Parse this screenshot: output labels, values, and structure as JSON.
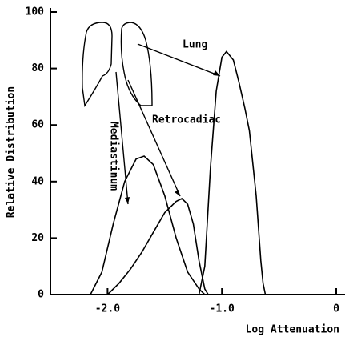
{
  "chart_data": {
    "type": "line",
    "x_label": "Log Attenuation",
    "y_label": "Relative Distribution",
    "xlim": [
      -2.5,
      0
    ],
    "ylim": [
      0,
      100
    ],
    "xticks": [
      {
        "value": -2,
        "label": "-2.0"
      },
      {
        "value": -1,
        "label": "-1.0"
      },
      0
    ],
    "yticks": [
      0,
      20,
      40,
      60,
      80,
      100
    ],
    "annotations": [
      "Lung",
      "Retrocadiac",
      "Mediastinum"
    ],
    "series": [
      {
        "color": "#000000",
        "x": [
          -2.15,
          -2.05,
          -1.95,
          -1.85,
          -1.75,
          -1.68,
          -1.6,
          -1.5,
          -1.4,
          -1.3,
          -1.2,
          -1.15
        ],
        "values": [
          0,
          8,
          25,
          40,
          48,
          49,
          46,
          35,
          20,
          8,
          2,
          0
        ]
      },
      {
        "color": "#000000",
        "x": [
          -2.0,
          -1.9,
          -1.8,
          -1.7,
          -1.6,
          -1.5,
          -1.4,
          -1.35,
          -1.3,
          -1.25,
          -1.2,
          -1.15,
          -1.12
        ],
        "values": [
          0,
          4,
          9,
          15,
          22,
          29,
          33,
          34,
          32,
          25,
          12,
          2,
          0
        ]
      },
      {
        "color": "#000000",
        "x": [
          -1.2,
          -1.15,
          -1.1,
          -1.05,
          -1.0,
          -0.96,
          -0.9,
          -0.85,
          -0.8,
          -0.76,
          -0.7,
          -0.66,
          -0.64,
          -0.62
        ],
        "values": [
          0,
          10,
          45,
          72,
          84,
          86,
          83,
          75,
          66,
          58,
          35,
          12,
          4,
          0
        ]
      }
    ]
  }
}
